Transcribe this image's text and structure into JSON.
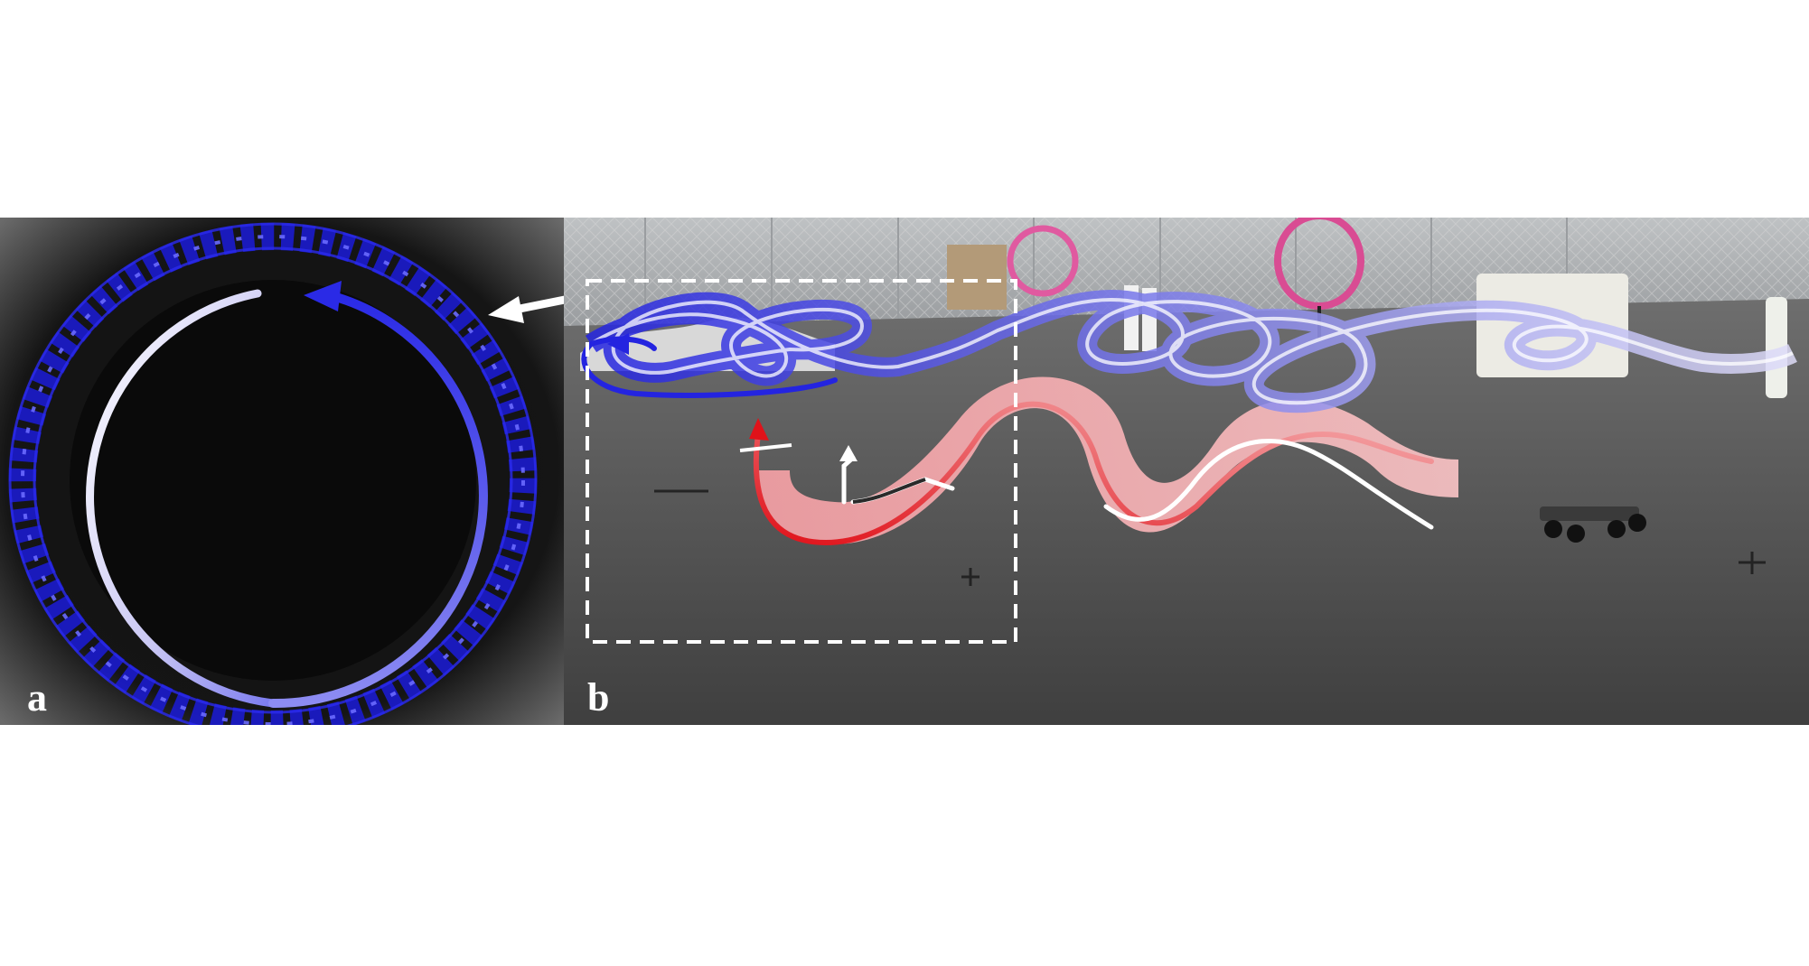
{
  "figure": {
    "panel_a": {
      "label": "a"
    },
    "panel_b": {
      "label": "b"
    }
  },
  "colors": {
    "trajectory_blue": "#2a2ae6",
    "trajectory_red": "#e0121a",
    "trajectory_pink": "#f4a3a8",
    "annotation_white": "#ffffff",
    "floor_gray": "#565656",
    "background_black": "#0b0b0b"
  }
}
